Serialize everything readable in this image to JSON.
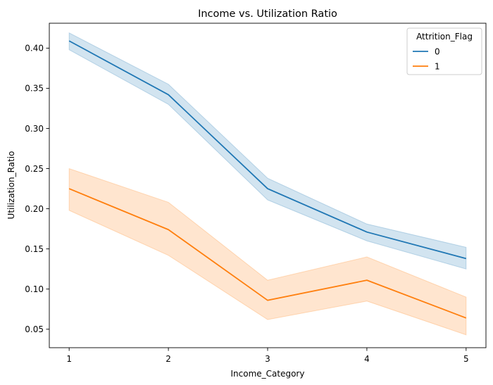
{
  "chart_data": {
    "type": "line",
    "title": "Income vs. Utilization Ratio",
    "xlabel": "Income_Category",
    "ylabel": "Utilization_Ratio",
    "x": [
      1,
      2,
      3,
      4,
      5
    ],
    "xlim": [
      0.8,
      5.2
    ],
    "ylim": [
      0.027,
      0.431
    ],
    "xticks": [
      1,
      2,
      3,
      4,
      5
    ],
    "yticks": [
      0.05,
      0.1,
      0.15,
      0.2,
      0.25,
      0.3,
      0.35,
      0.4
    ],
    "ytick_labels": [
      "0.05",
      "0.10",
      "0.15",
      "0.20",
      "0.25",
      "0.30",
      "0.35",
      "0.40"
    ],
    "grid": false,
    "legend": {
      "title": "Attrition_Flag",
      "placement": "top-right"
    },
    "series": [
      {
        "name": "0",
        "color": "#1f77b4",
        "values": [
          0.409,
          0.342,
          0.225,
          0.171,
          0.138
        ],
        "ci_low": [
          0.398,
          0.33,
          0.211,
          0.16,
          0.125
        ],
        "ci_high": [
          0.419,
          0.355,
          0.238,
          0.181,
          0.152
        ]
      },
      {
        "name": "1",
        "color": "#ff7f0e",
        "values": [
          0.225,
          0.174,
          0.086,
          0.111,
          0.064
        ],
        "ci_low": [
          0.198,
          0.142,
          0.062,
          0.085,
          0.043
        ],
        "ci_high": [
          0.25,
          0.208,
          0.111,
          0.14,
          0.09
        ]
      }
    ]
  }
}
